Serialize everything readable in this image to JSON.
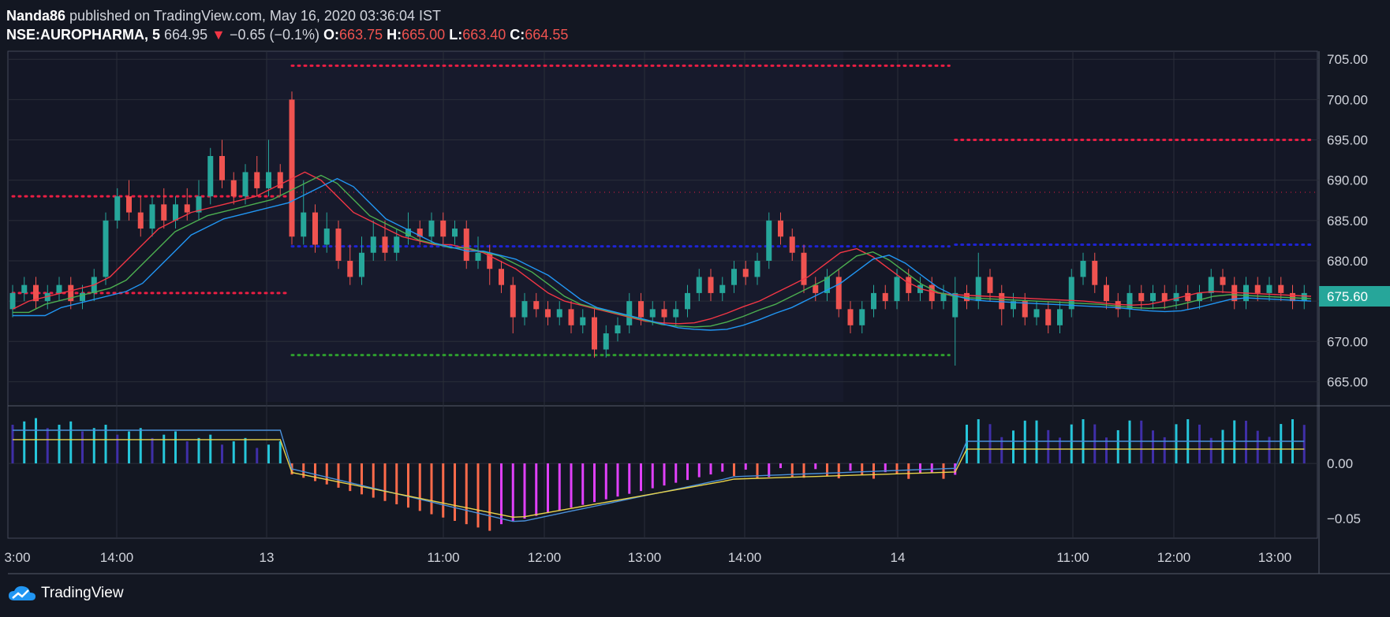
{
  "header": {
    "user": "Nanda86",
    "published": " published on TradingView.com, May 16, 2020 03:36:04 IST",
    "symbol": "NSE:AUROPHARMA, 5",
    "last": "664.95",
    "down_arrow": "▼",
    "change": "−0.65 (−0.1%)",
    "o_label": "O:",
    "o_val": "663.75",
    "h_label": "H:",
    "h_val": "665.00",
    "l_label": "L:",
    "l_val": "663.40",
    "c_label": "C:",
    "c_val": "664.55"
  },
  "footer": {
    "brand": "TradingView"
  },
  "colors": {
    "up": "#26a69a",
    "down": "#ef5350",
    "ema_fast": "#f23645",
    "ema_mid": "#4caf50",
    "ema_slow": "#2196f3",
    "pivot_red": "#e91e43",
    "pivot_blue": "#1e24d6",
    "pivot_green": "#2e9e2e",
    "macd_line": "#4a90d9",
    "signal_line": "#e8d34a",
    "hist_pos_up": "#26c6da",
    "hist_pos_down": "#3f2fa8",
    "hist_neg_down": "#ff6b4a",
    "hist_neg_up": "#e040fb",
    "price_badge": "#26a69a"
  },
  "chart_data": {
    "type": "candlestick",
    "price_axis": {
      "ticks": [
        "705.00",
        "700.00",
        "695.00",
        "690.00",
        "685.00",
        "680.00",
        "675.00",
        "670.00",
        "665.00"
      ],
      "range": [
        662.5,
        706
      ]
    },
    "current_price": "675.60",
    "time_axis": {
      "labels": [
        "3:00",
        "14:00",
        "13",
        "11:00",
        "12:00",
        "13:00",
        "14:00",
        "14",
        "11:00",
        "12:00",
        "13:00"
      ]
    },
    "macd_axis": {
      "ticks": [
        "0.00",
        "−0.05"
      ]
    },
    "candles": [
      [
        674,
        676,
        673,
        677
      ],
      [
        676,
        677,
        675,
        678
      ],
      [
        677,
        675,
        674,
        678
      ],
      [
        675,
        676,
        674,
        677
      ],
      [
        676,
        677,
        675,
        678
      ],
      [
        677,
        675,
        674,
        678
      ],
      [
        675,
        676,
        674,
        677
      ],
      [
        676,
        678,
        675,
        679
      ],
      [
        678,
        685,
        677,
        686
      ],
      [
        685,
        688,
        684,
        689
      ],
      [
        688,
        686,
        685,
        690
      ],
      [
        686,
        684,
        683,
        688
      ],
      [
        684,
        687,
        683,
        688
      ],
      [
        687,
        685,
        684,
        689
      ],
      [
        685,
        687,
        684,
        688
      ],
      [
        687,
        686,
        685,
        689
      ],
      [
        686,
        688,
        685,
        690
      ],
      [
        688,
        693,
        687,
        694
      ],
      [
        693,
        690,
        689,
        695
      ],
      [
        690,
        688,
        687,
        691
      ],
      [
        688,
        691,
        687,
        692
      ],
      [
        691,
        689,
        688,
        693
      ],
      [
        689,
        691,
        688,
        695
      ],
      [
        691,
        689,
        688,
        692
      ],
      [
        700,
        683,
        682,
        701
      ],
      [
        683,
        686,
        682,
        690
      ],
      [
        686,
        682,
        681,
        687
      ],
      [
        682,
        684,
        681,
        686
      ],
      [
        684,
        680,
        679,
        685
      ],
      [
        680,
        678,
        677,
        682
      ],
      [
        678,
        681,
        677,
        683
      ],
      [
        681,
        683,
        680,
        685
      ],
      [
        683,
        681,
        680,
        685
      ],
      [
        681,
        683,
        680,
        684
      ],
      [
        683,
        684,
        682,
        686
      ],
      [
        684,
        683,
        682,
        685
      ],
      [
        683,
        685,
        682,
        686
      ],
      [
        685,
        683,
        682,
        686
      ],
      [
        683,
        684,
        682,
        685
      ],
      [
        684,
        680,
        679,
        685
      ],
      [
        680,
        681,
        679,
        683
      ],
      [
        681,
        679,
        677,
        682
      ],
      [
        679,
        677,
        676,
        680
      ],
      [
        677,
        673,
        671,
        678
      ],
      [
        673,
        675,
        672,
        676
      ],
      [
        675,
        674,
        673,
        676
      ],
      [
        674,
        673,
        672,
        675
      ],
      [
        673,
        674,
        672,
        675
      ],
      [
        674,
        672,
        671,
        675
      ],
      [
        672,
        673,
        671,
        674
      ],
      [
        673,
        669,
        668,
        674
      ],
      [
        669,
        671,
        668,
        672
      ],
      [
        671,
        672,
        670,
        673
      ],
      [
        672,
        675,
        671,
        676
      ],
      [
        675,
        673,
        672,
        676
      ],
      [
        673,
        674,
        672,
        675
      ],
      [
        674,
        673,
        672,
        675
      ],
      [
        673,
        674,
        672,
        675
      ],
      [
        674,
        676,
        673,
        677
      ],
      [
        676,
        678,
        675,
        679
      ],
      [
        678,
        676,
        675,
        679
      ],
      [
        676,
        677,
        675,
        678
      ],
      [
        677,
        679,
        676,
        680
      ],
      [
        679,
        678,
        677,
        680
      ],
      [
        678,
        680,
        677,
        681
      ],
      [
        680,
        685,
        679,
        686
      ],
      [
        685,
        683,
        682,
        686
      ],
      [
        683,
        681,
        680,
        684
      ],
      [
        681,
        677,
        676,
        682
      ],
      [
        677,
        676,
        675,
        678
      ],
      [
        676,
        678,
        675,
        679
      ],
      [
        678,
        674,
        673,
        679
      ],
      [
        674,
        672,
        671,
        675
      ],
      [
        672,
        674,
        671,
        675
      ],
      [
        674,
        676,
        673,
        677
      ],
      [
        676,
        675,
        674,
        677
      ],
      [
        675,
        678,
        674,
        679
      ],
      [
        678,
        676,
        675,
        679
      ],
      [
        676,
        677,
        675,
        678
      ],
      [
        677,
        675,
        674,
        678
      ],
      [
        675,
        676,
        674,
        677
      ],
      [
        673,
        676,
        667,
        678
      ],
      [
        676,
        675,
        674,
        677
      ],
      [
        675,
        678,
        674,
        681
      ],
      [
        678,
        676,
        675,
        679
      ],
      [
        676,
        674,
        672,
        677
      ],
      [
        674,
        675,
        673,
        676
      ],
      [
        675,
        673,
        672,
        676
      ],
      [
        673,
        674,
        672,
        675
      ],
      [
        674,
        672,
        671,
        675
      ],
      [
        672,
        674,
        671,
        675
      ],
      [
        674,
        678,
        673,
        679
      ],
      [
        678,
        680,
        677,
        681
      ],
      [
        680,
        677,
        676,
        681
      ],
      [
        677,
        675,
        674,
        678
      ],
      [
        675,
        674,
        673,
        676
      ],
      [
        674,
        676,
        673,
        677
      ],
      [
        676,
        675,
        674,
        677
      ],
      [
        675,
        676,
        674,
        677
      ],
      [
        676,
        675,
        674,
        677
      ],
      [
        675,
        676,
        674,
        677
      ],
      [
        676,
        675,
        674,
        677
      ],
      [
        675,
        676,
        674,
        677
      ],
      [
        676,
        678,
        675,
        679
      ],
      [
        678,
        677,
        676,
        679
      ],
      [
        677,
        675,
        674,
        678
      ],
      [
        675,
        677,
        674,
        678
      ],
      [
        677,
        676,
        675,
        678
      ],
      [
        676,
        677,
        675,
        678
      ],
      [
        677,
        676,
        675,
        678
      ],
      [
        676,
        675,
        674,
        677
      ],
      [
        675,
        676,
        674,
        677
      ]
    ],
    "ema_fast": [
      674,
      675,
      675.5,
      676,
      676.5,
      677,
      678,
      680,
      682,
      684,
      685,
      686,
      686.5,
      687,
      687.5,
      688,
      689,
      690,
      691,
      690,
      688,
      686,
      685,
      684,
      683,
      682.5,
      682,
      682,
      681.5,
      681,
      680,
      679,
      677.5,
      676,
      675,
      674.5,
      674,
      673.5,
      673,
      672.5,
      672.3,
      672.2,
      672.3,
      672.8,
      673.5,
      674.3,
      675,
      676,
      677,
      678,
      679.5,
      681,
      681.5,
      680.5,
      679,
      677.5,
      676.5,
      676,
      675.8,
      675.7,
      675.6,
      675.5,
      675.4,
      675.3,
      675.2,
      675.1,
      675,
      674.8,
      674.6,
      674.5,
      674.6,
      675,
      675.5,
      676,
      676.2,
      676.1,
      676,
      675.9,
      675.8,
      675.7,
      675.6
    ],
    "pivots": {
      "day1": {
        "x0": 0,
        "x1": 24,
        "levels": [
          {
            "v": 688,
            "c": "red"
          },
          {
            "v": 676,
            "c": "red"
          }
        ]
      },
      "day2": {
        "x0": 24,
        "x1": 81,
        "levels": [
          {
            "v": 704.2,
            "c": "red"
          },
          {
            "v": 681.8,
            "c": "blue"
          },
          {
            "v": 668.3,
            "c": "green"
          }
        ]
      },
      "day3": {
        "x0": 81,
        "x1": 122,
        "levels": [
          {
            "v": 695,
            "c": "red"
          },
          {
            "v": 682,
            "c": "blue"
          }
        ]
      }
    },
    "macd": {
      "hist_range": [
        -0.062,
        0.045
      ],
      "note": "series shape approximated"
    }
  }
}
